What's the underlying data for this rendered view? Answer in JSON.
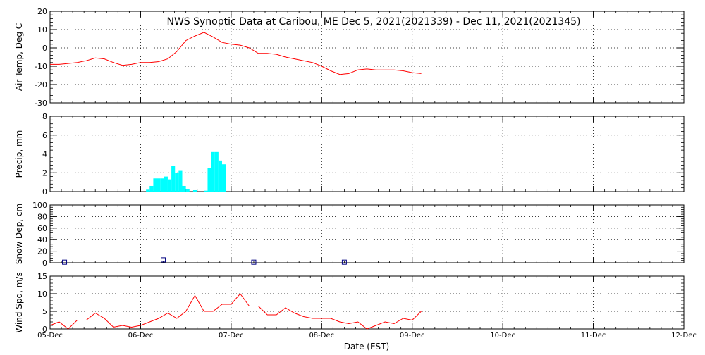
{
  "title": "NWS Synoptic Data at Caribou, ME   Dec  5, 2021(2021339) - Dec 11, 2021(2021345)",
  "xlabel": "Date (EST)",
  "xticks": [
    "05-Dec",
    "06-Dec",
    "07-Dec",
    "08-Dec",
    "09-Dec",
    "10-Dec",
    "11-Dec",
    "12-Dec"
  ],
  "chart_data": [
    {
      "type": "line",
      "ylabel": "Air Temp, Deg C",
      "ylim": [
        -30,
        20
      ],
      "yticks": [
        20,
        10,
        0,
        -10,
        -20,
        -30
      ],
      "color": "#ff0000",
      "x": [
        0,
        0.1,
        0.2,
        0.3,
        0.4,
        0.5,
        0.6,
        0.7,
        0.8,
        0.9,
        1.0,
        1.1,
        1.2,
        1.3,
        1.4,
        1.5,
        1.6,
        1.7,
        1.8,
        1.9,
        2.0,
        2.1,
        2.2,
        2.3,
        2.4,
        2.5,
        2.6,
        2.7,
        2.8,
        2.9,
        3.0,
        3.1,
        3.2,
        3.3,
        3.4,
        3.5,
        3.6,
        3.7,
        3.8,
        3.9,
        4.0,
        4.1
      ],
      "y": [
        -9,
        -9,
        -8.5,
        -8,
        -7,
        -5.5,
        -6,
        -8,
        -9.5,
        -9,
        -8,
        -8,
        -7.5,
        -6,
        -2,
        4,
        6.5,
        8.5,
        6,
        3,
        2,
        1.5,
        0,
        -3,
        -3,
        -3.5,
        -5,
        -6,
        -7,
        -8,
        -10,
        -12.5,
        -14.5,
        -14,
        -12,
        -11.5,
        -12,
        -12,
        -12,
        -12.5,
        -13.5,
        -14
      ]
    },
    {
      "type": "bar",
      "ylabel": "Precip, mm",
      "ylim": [
        0,
        8
      ],
      "yticks": [
        8,
        6,
        4,
        2,
        0
      ],
      "color": "#00ffff",
      "x": [
        1.08,
        1.12,
        1.16,
        1.2,
        1.24,
        1.28,
        1.32,
        1.36,
        1.4,
        1.44,
        1.48,
        1.52,
        1.56,
        1.6,
        1.64,
        1.68,
        1.72,
        1.76,
        1.8,
        1.84,
        1.88,
        1.92,
        1.96
      ],
      "y": [
        0.2,
        0.6,
        1.4,
        1.4,
        1.4,
        1.6,
        1.3,
        2.7,
        2.0,
        2.2,
        0.6,
        0.3,
        0.0,
        0.15,
        0.0,
        0.0,
        0.1,
        2.5,
        4.2,
        4.2,
        3.3,
        2.9,
        0.0
      ]
    },
    {
      "type": "scatter",
      "ylabel": "Snow Dep, cm",
      "ylim": [
        0,
        100
      ],
      "yticks": [
        100,
        80,
        60,
        40,
        20,
        0
      ],
      "color": "#000080",
      "x": [
        0.16,
        1.25,
        2.25,
        3.25
      ],
      "y": [
        1,
        5,
        1,
        1
      ]
    },
    {
      "type": "line",
      "ylabel": "Wind Spd, m/s",
      "ylim": [
        0,
        15
      ],
      "yticks": [
        15,
        10,
        5,
        0
      ],
      "color": "#ff0000",
      "x": [
        0,
        0.1,
        0.2,
        0.3,
        0.4,
        0.5,
        0.6,
        0.7,
        0.8,
        0.9,
        1.0,
        1.1,
        1.2,
        1.3,
        1.4,
        1.5,
        1.6,
        1.7,
        1.8,
        1.9,
        2.0,
        2.1,
        2.2,
        2.3,
        2.4,
        2.5,
        2.6,
        2.7,
        2.8,
        2.9,
        3.0,
        3.1,
        3.2,
        3.3,
        3.4,
        3.5,
        3.6,
        3.7,
        3.8,
        3.9,
        4.0,
        4.1
      ],
      "y": [
        1,
        2,
        0,
        2.5,
        2.5,
        4.5,
        3,
        0.5,
        1,
        0.5,
        1,
        2,
        3,
        4.5,
        3,
        5,
        9.5,
        5,
        5,
        7,
        7,
        10,
        6.5,
        6.5,
        4,
        4,
        6,
        4.5,
        3.5,
        3,
        3,
        3,
        2,
        1.5,
        2,
        0,
        1,
        2,
        1.5,
        3,
        2.5,
        5
      ]
    }
  ]
}
